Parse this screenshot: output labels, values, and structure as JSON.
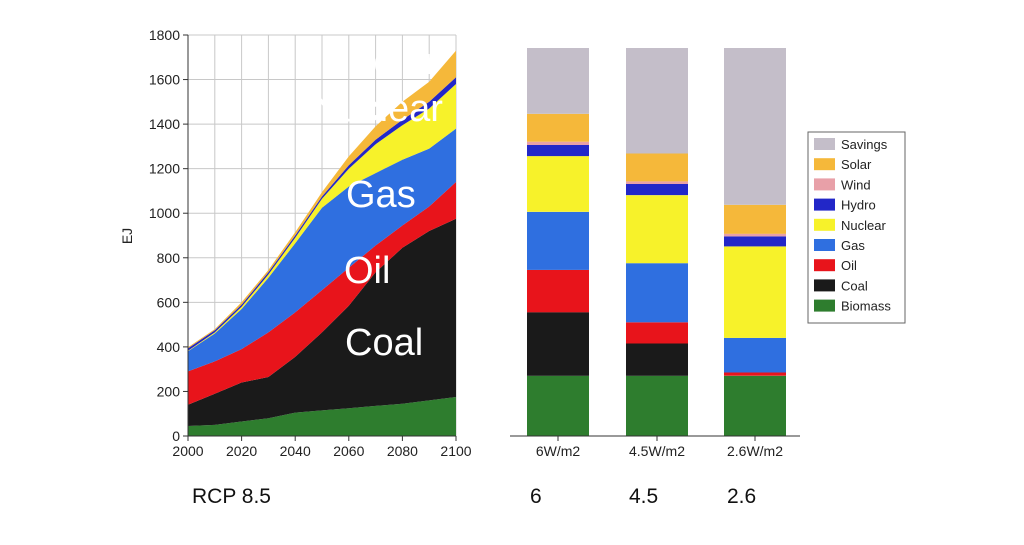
{
  "chart_data": [
    {
      "type": "area",
      "ylabel": "EJ",
      "xlabel": "RCP 8.5",
      "ylim": [
        0,
        1800
      ],
      "xlim": [
        2000,
        2100
      ],
      "y_ticks": [
        0,
        200,
        400,
        600,
        800,
        1000,
        1200,
        1400,
        1600,
        1800
      ],
      "x_ticks": [
        2000,
        2020,
        2040,
        2060,
        2080,
        2100
      ],
      "x": [
        2000,
        2010,
        2020,
        2030,
        2040,
        2050,
        2060,
        2070,
        2080,
        2090,
        2100
      ],
      "series": [
        {
          "name": "Biomass",
          "color": "#2e7d2e",
          "values": [
            45,
            50,
            65,
            80,
            105,
            115,
            125,
            135,
            145,
            160,
            175
          ]
        },
        {
          "name": "Coal",
          "color": "#1a1a1a",
          "values": [
            95,
            140,
            175,
            185,
            250,
            350,
            460,
            600,
            700,
            760,
            800
          ]
        },
        {
          "name": "Oil",
          "color": "#e8141b",
          "values": [
            150,
            145,
            150,
            200,
            200,
            190,
            170,
            120,
            100,
            110,
            165
          ]
        },
        {
          "name": "Gas",
          "color": "#2f6fe0",
          "values": [
            90,
            125,
            180,
            245,
            310,
            370,
            365,
            325,
            295,
            260,
            240
          ]
        },
        {
          "name": "Nuclear",
          "color": "#f7f22a",
          "values": [
            3,
            5,
            10,
            15,
            25,
            40,
            80,
            130,
            155,
            180,
            200
          ]
        },
        {
          "name": "Hydro",
          "color": "#2227c8",
          "values": [
            10,
            10,
            10,
            10,
            10,
            10,
            15,
            20,
            25,
            30,
            30
          ]
        },
        {
          "name": "Solar",
          "color": "#f5b83a",
          "values": [
            5,
            5,
            10,
            10,
            15,
            20,
            40,
            60,
            80,
            90,
            120
          ]
        }
      ],
      "area_labels": {
        "solar": "Solar",
        "nuclear": "Nuclear",
        "gas": "Gas",
        "oil": "Oil",
        "coal": "Coal"
      }
    },
    {
      "type": "bar",
      "stacked": true,
      "categories": [
        "6W/m2",
        "4.5W/m2",
        "2.6W/m2"
      ],
      "bottom_labels": [
        "6",
        "4.5",
        "2.6"
      ],
      "series": [
        {
          "name": "Biomass",
          "color": "#2e7d2e",
          "values": [
            270,
            270,
            270
          ]
        },
        {
          "name": "Coal",
          "color": "#1a1a1a",
          "values": [
            285,
            145,
            0
          ]
        },
        {
          "name": "Oil",
          "color": "#e8141b",
          "values": [
            190,
            95,
            15
          ]
        },
        {
          "name": "Gas",
          "color": "#2f6fe0",
          "values": [
            260,
            265,
            155
          ]
        },
        {
          "name": "Nuclear",
          "color": "#f7f22a",
          "values": [
            250,
            305,
            410
          ]
        },
        {
          "name": "Hydro",
          "color": "#2227c8",
          "values": [
            50,
            50,
            45
          ]
        },
        {
          "name": "Wind",
          "color": "#e8a0a8",
          "values": [
            15,
            12,
            12
          ]
        },
        {
          "name": "Solar",
          "color": "#f5b83a",
          "values": [
            125,
            125,
            130
          ]
        },
        {
          "name": "Savings",
          "color": "#c4bec9",
          "values": [
            295,
            473,
            703
          ]
        }
      ]
    }
  ],
  "legend": [
    {
      "label": "Savings",
      "color": "#c4bec9"
    },
    {
      "label": "Solar",
      "color": "#f5b83a"
    },
    {
      "label": "Wind",
      "color": "#e8a0a8"
    },
    {
      "label": "Hydro",
      "color": "#2227c8"
    },
    {
      "label": "Nuclear",
      "color": "#f7f22a"
    },
    {
      "label": "Gas",
      "color": "#2f6fe0"
    },
    {
      "label": "Oil",
      "color": "#e8141b"
    },
    {
      "label": "Coal",
      "color": "#1a1a1a"
    },
    {
      "label": "Biomass",
      "color": "#2e7d2e"
    }
  ]
}
